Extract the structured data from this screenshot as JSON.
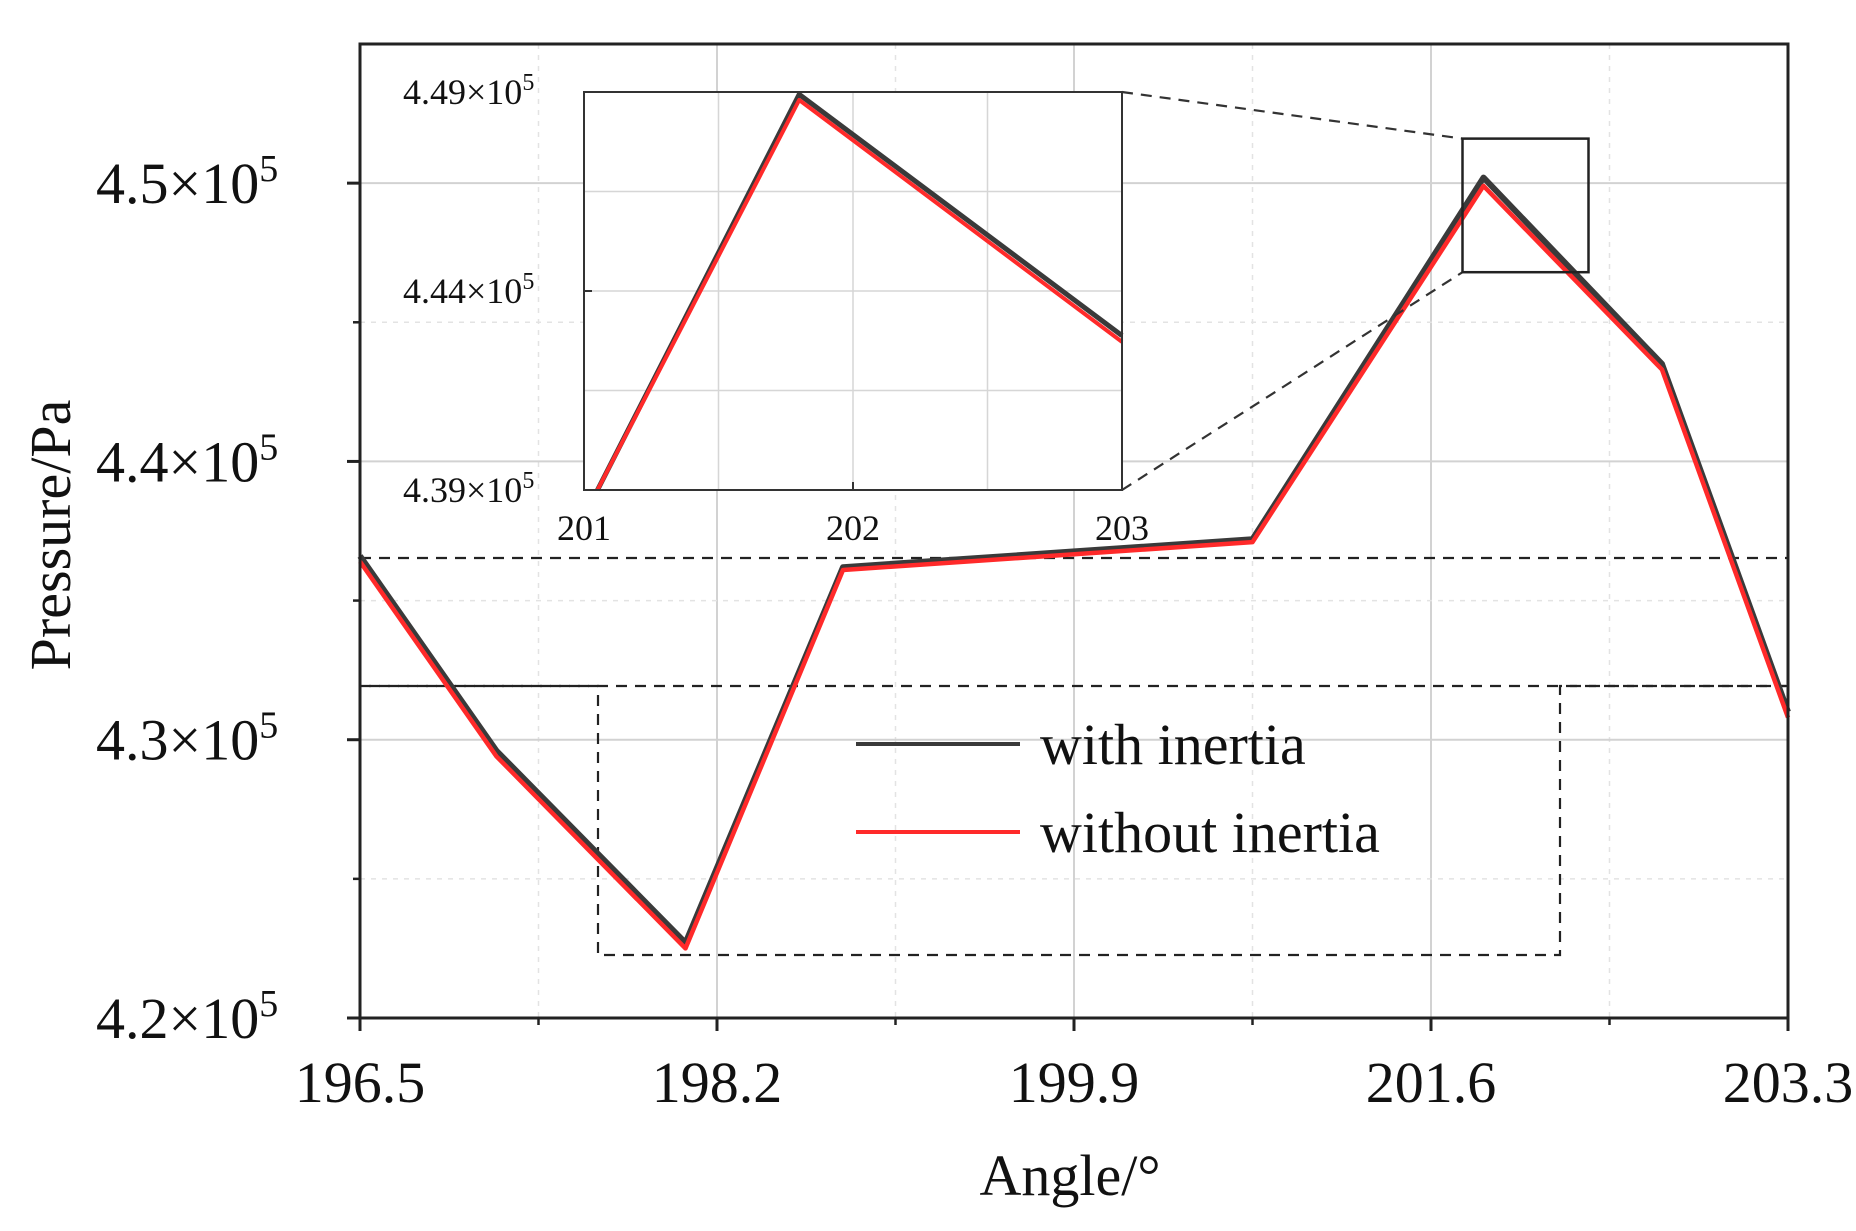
{
  "chart_data": {
    "type": "line",
    "xlabel": "Angle/°",
    "ylabel": "Pressure/Pa",
    "xlim": [
      196.5,
      203.3
    ],
    "ylim": [
      420000,
      455000
    ],
    "xticks": [
      196.5,
      198.2,
      199.9,
      201.6,
      203.3
    ],
    "xtick_labels": [
      "196.5",
      "198.2",
      "199.9",
      "201.6",
      "203.3"
    ],
    "yticks": [
      420000,
      430000,
      440000,
      450000
    ],
    "ytick_labels": [
      {
        "mantissa": "4.2×10",
        "exp": "5"
      },
      {
        "mantissa": "4.3×10",
        "exp": "5"
      },
      {
        "mantissa": "4.4×10",
        "exp": "5"
      },
      {
        "mantissa": "4.5×10",
        "exp": "5"
      }
    ],
    "grid": true,
    "series": [
      {
        "name": "with inertia",
        "color": "#3a3a3a",
        "x": [
          196.5,
          197.15,
          198.05,
          198.8,
          200.75,
          201.85,
          202.7,
          203.3
        ],
        "y": [
          436600,
          429600,
          422700,
          436200,
          437200,
          450200,
          443500,
          431000
        ]
      },
      {
        "name": "without inertia",
        "color": "#ff2a2a",
        "x": [
          196.5,
          197.15,
          198.05,
          198.8,
          200.75,
          201.85,
          202.7,
          203.3
        ],
        "y": [
          436400,
          429400,
          422500,
          436100,
          437100,
          449900,
          443300,
          430800
        ]
      }
    ],
    "legend": {
      "position": "lower-right",
      "entries": [
        "with inertia",
        "without inertia"
      ]
    },
    "inset": {
      "xlim": [
        201,
        203
      ],
      "ylim": [
        439000,
        449000
      ],
      "xtick_labels": [
        "201",
        "202",
        "203"
      ],
      "ytick_labels": [
        {
          "mantissa": "4.39×10",
          "exp": "5"
        },
        {
          "mantissa": "4.44×10",
          "exp": "5"
        },
        {
          "mantissa": "4.49×10",
          "exp": "5"
        }
      ],
      "series": [
        {
          "name": "with inertia",
          "x": [
            201.05,
            201.8,
            203
          ],
          "y": [
            439000,
            448940,
            442880
          ]
        },
        {
          "name": "without inertia",
          "x": [
            201.05,
            201.8,
            203
          ],
          "y": [
            439000,
            448800,
            442720
          ]
        }
      ],
      "zoom_box": {
        "x": [
          201.75,
          202.35
        ],
        "y": [
          446800,
          451600
        ]
      }
    }
  }
}
